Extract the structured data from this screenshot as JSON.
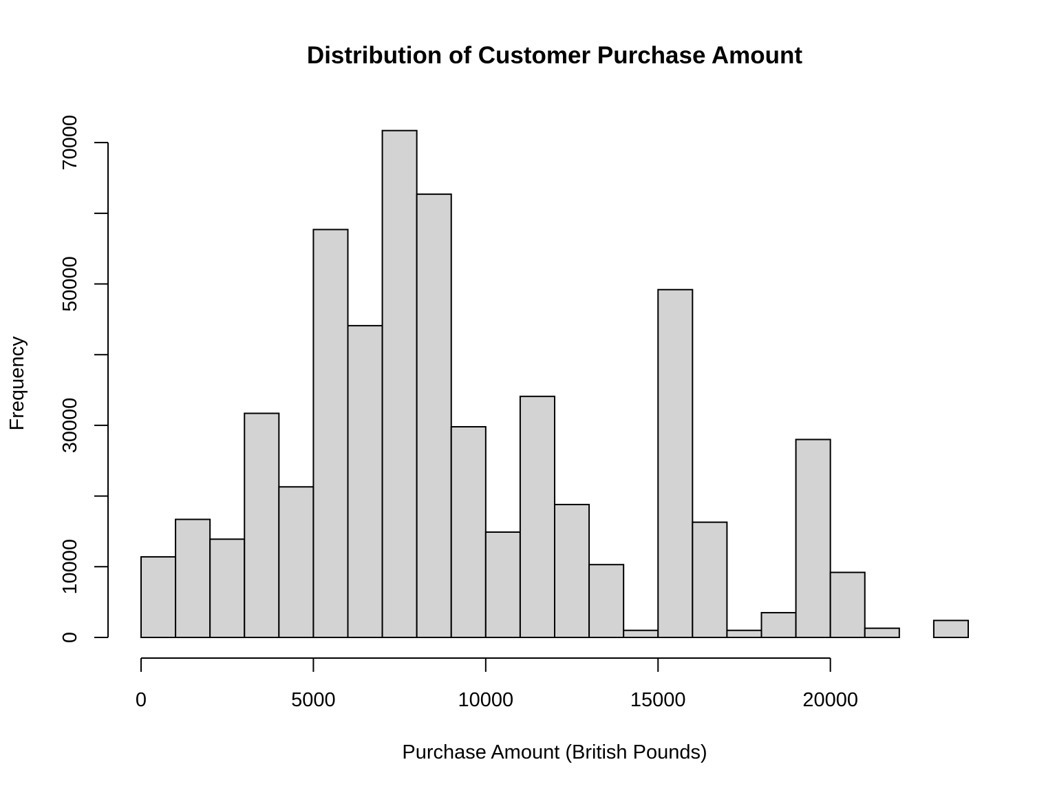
{
  "chart_data": {
    "type": "bar",
    "histogram": true,
    "title": "Distribution of Customer Purchase Amount",
    "xlabel": "Purchase Amount (British Pounds)",
    "ylabel": "Frequency",
    "bin_width": 1000,
    "bins": [
      {
        "start": 0,
        "end": 1000,
        "count": 11400
      },
      {
        "start": 1000,
        "end": 2000,
        "count": 16700
      },
      {
        "start": 2000,
        "end": 3000,
        "count": 13900
      },
      {
        "start": 3000,
        "end": 4000,
        "count": 31700
      },
      {
        "start": 4000,
        "end": 5000,
        "count": 21300
      },
      {
        "start": 5000,
        "end": 6000,
        "count": 57700
      },
      {
        "start": 6000,
        "end": 7000,
        "count": 44100
      },
      {
        "start": 7000,
        "end": 8000,
        "count": 71700
      },
      {
        "start": 8000,
        "end": 9000,
        "count": 62700
      },
      {
        "start": 9000,
        "end": 10000,
        "count": 29800
      },
      {
        "start": 10000,
        "end": 11000,
        "count": 14900
      },
      {
        "start": 11000,
        "end": 12000,
        "count": 34100
      },
      {
        "start": 12000,
        "end": 13000,
        "count": 18800
      },
      {
        "start": 13000,
        "end": 14000,
        "count": 10300
      },
      {
        "start": 14000,
        "end": 15000,
        "count": 1000
      },
      {
        "start": 15000,
        "end": 16000,
        "count": 49200
      },
      {
        "start": 16000,
        "end": 17000,
        "count": 16300
      },
      {
        "start": 17000,
        "end": 18000,
        "count": 1000
      },
      {
        "start": 18000,
        "end": 19000,
        "count": 3500
      },
      {
        "start": 19000,
        "end": 20000,
        "count": 28000
      },
      {
        "start": 20000,
        "end": 21000,
        "count": 9200
      },
      {
        "start": 21000,
        "end": 22000,
        "count": 1300
      },
      {
        "start": 22000,
        "end": 23000,
        "count": 0
      },
      {
        "start": 23000,
        "end": 24000,
        "count": 2400
      }
    ],
    "x_ticks": [
      0,
      5000,
      10000,
      15000,
      20000
    ],
    "x_tick_labels": [
      "0",
      "5000",
      "10000",
      "15000",
      "20000"
    ],
    "y_ticks": [
      0,
      10000,
      20000,
      30000,
      40000,
      50000,
      60000,
      70000
    ],
    "y_tick_labels": [
      "0",
      "10000",
      "",
      "30000",
      "",
      "50000",
      "",
      "70000"
    ],
    "xlim": [
      0,
      24000
    ],
    "ylim": [
      0,
      72000
    ],
    "grid": false,
    "bar_color": "#d3d3d3",
    "edge_color": "#000000"
  }
}
